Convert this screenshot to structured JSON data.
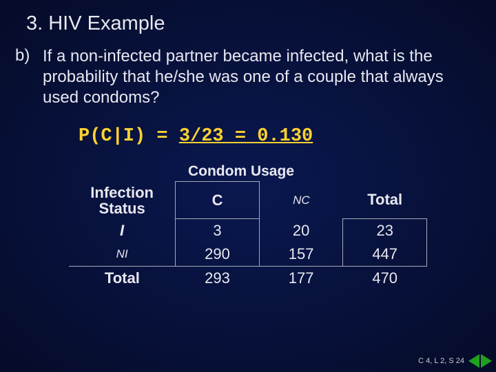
{
  "title": "3.  HIV Example",
  "question": {
    "marker": "b)",
    "text": "If a non-infected partner became infected, what is the probability that he/she was one of a couple that always used condoms?"
  },
  "formula": {
    "lhs": "P(C|I) = ",
    "rhs": "3/23 = 0.130"
  },
  "table": {
    "super_header": "Condom Usage",
    "row_header_top": "Infection Status",
    "col_headers": {
      "c": "C",
      "nc": "NC",
      "total": "Total"
    },
    "rows": [
      {
        "label": "I",
        "c": "3",
        "nc": "20",
        "total": "23"
      },
      {
        "label": "NI",
        "c": "290",
        "nc": "157",
        "total": "447"
      },
      {
        "label": "Total",
        "c": "293",
        "nc": "177",
        "total": "470"
      }
    ]
  },
  "footer": {
    "ref": "C 4, L 2, S 24"
  },
  "colors": {
    "bg_inner": "#0a1850",
    "bg_outer": "#050b28",
    "text": "#e8e8f0",
    "accent": "#ffd230",
    "border": "#aab",
    "nav_triangle": "#1fa01f"
  }
}
